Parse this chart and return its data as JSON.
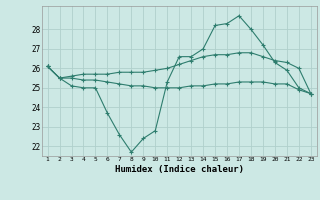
{
  "x": [
    1,
    2,
    3,
    4,
    5,
    6,
    7,
    8,
    9,
    10,
    11,
    12,
    13,
    14,
    15,
    16,
    17,
    18,
    19,
    20,
    21,
    22,
    23
  ],
  "line1": [
    26.1,
    25.5,
    25.1,
    25.0,
    25.0,
    23.7,
    22.6,
    21.7,
    22.4,
    22.8,
    25.3,
    26.6,
    26.6,
    27.0,
    28.2,
    28.3,
    28.7,
    28.0,
    27.2,
    26.3,
    25.9,
    25.0,
    24.7
  ],
  "line2": [
    26.1,
    25.5,
    25.6,
    25.7,
    25.7,
    25.7,
    25.8,
    25.8,
    25.8,
    25.9,
    26.0,
    26.2,
    26.4,
    26.6,
    26.7,
    26.7,
    26.8,
    26.8,
    26.6,
    26.4,
    26.3,
    26.0,
    24.7
  ],
  "line3": [
    26.1,
    25.5,
    25.5,
    25.4,
    25.4,
    25.3,
    25.2,
    25.1,
    25.1,
    25.0,
    25.0,
    25.0,
    25.1,
    25.1,
    25.2,
    25.2,
    25.3,
    25.3,
    25.3,
    25.2,
    25.2,
    24.9,
    24.7
  ],
  "line_color": "#2e7d6e",
  "bg_color": "#cce8e4",
  "grid_color": "#b0d0cc",
  "xlabel": "Humidex (Indice chaleur)",
  "ylim": [
    21.5,
    29.2
  ],
  "xlim_min": 0.5,
  "xlim_max": 23.5,
  "yticks": [
    22,
    23,
    24,
    25,
    26,
    27,
    28
  ],
  "xticks": [
    1,
    2,
    3,
    4,
    5,
    6,
    7,
    8,
    9,
    10,
    11,
    12,
    13,
    14,
    15,
    16,
    17,
    18,
    19,
    20,
    21,
    22,
    23
  ]
}
